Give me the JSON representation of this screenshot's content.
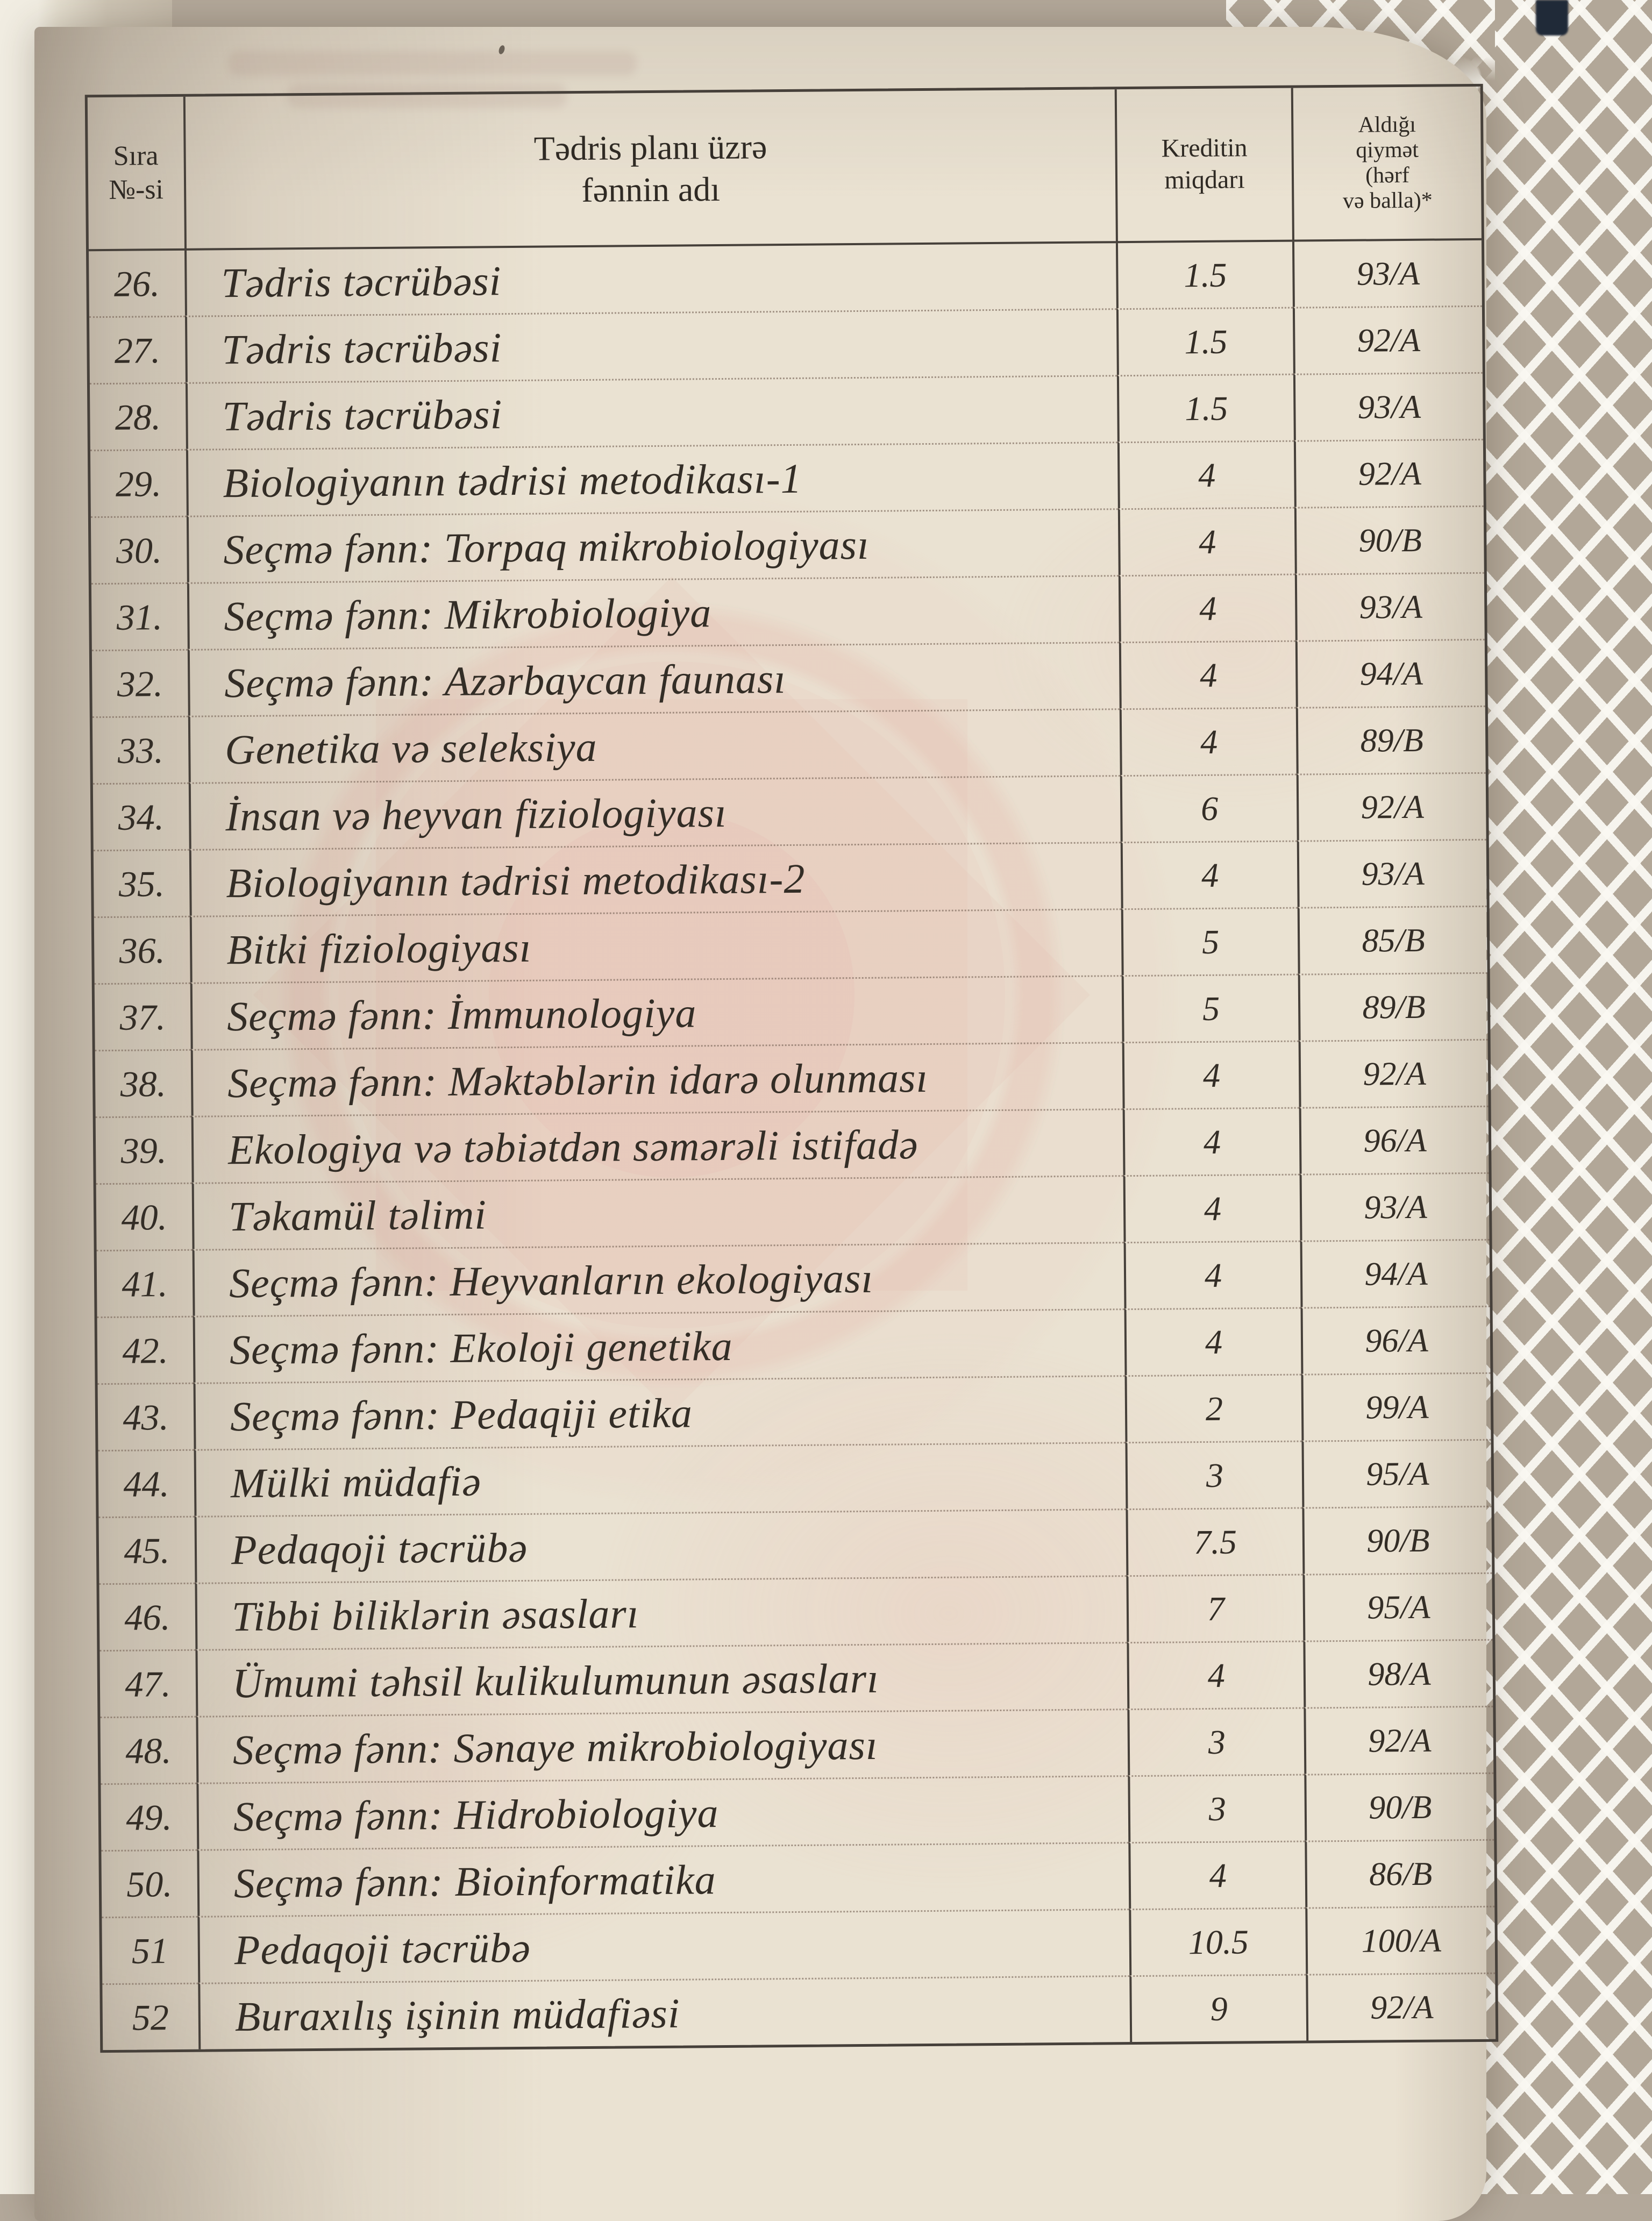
{
  "table": {
    "header": {
      "col_no": "Sıra\n№-si",
      "col_name": "Tədris planı üzrə\nfənnin adı",
      "col_credit": "Kreditin\nmiqdarı",
      "col_grade": "Aldığı\nqiymət\n(hərf\nvə balla)*"
    },
    "rows": [
      {
        "no": "26.",
        "name": "Tədris təcrübəsi",
        "credit": "1.5",
        "grade": "93/A"
      },
      {
        "no": "27.",
        "name": "Tədris təcrübəsi",
        "credit": "1.5",
        "grade": "92/A"
      },
      {
        "no": "28.",
        "name": "Tədris təcrübəsi",
        "credit": "1.5",
        "grade": "93/A"
      },
      {
        "no": "29.",
        "name": "Biologiyanın tədrisi metodikası-1",
        "credit": "4",
        "grade": "92/A"
      },
      {
        "no": "30.",
        "name": "Seçmə fənn: Torpaq mikrobiologiyası",
        "credit": "4",
        "grade": "90/B"
      },
      {
        "no": "31.",
        "name": "Seçmə fənn: Mikrobiologiya",
        "credit": "4",
        "grade": "93/A"
      },
      {
        "no": "32.",
        "name": "Seçmə fənn: Azərbaycan faunası",
        "credit": "4",
        "grade": "94/A"
      },
      {
        "no": "33.",
        "name": "Genetika və seleksiya",
        "credit": "4",
        "grade": "89/B"
      },
      {
        "no": "34.",
        "name": "İnsan və heyvan fiziologiyası",
        "credit": "6",
        "grade": "92/A"
      },
      {
        "no": "35.",
        "name": "Biologiyanın tədrisi metodikası-2",
        "credit": "4",
        "grade": "93/A"
      },
      {
        "no": "36.",
        "name": "Bitki fiziologiyası",
        "credit": "5",
        "grade": "85/B"
      },
      {
        "no": "37.",
        "name": "Seçmə fənn: İmmunologiya",
        "credit": "5",
        "grade": "89/B"
      },
      {
        "no": "38.",
        "name": "Seçmə fənn: Məktəblərin idarə olunması",
        "credit": "4",
        "grade": "92/A"
      },
      {
        "no": "39.",
        "name": "Ekologiya və təbiətdən səmərəli istifadə",
        "credit": "4",
        "grade": "96/A"
      },
      {
        "no": "40.",
        "name": "Təkamül təlimi",
        "credit": "4",
        "grade": "93/A"
      },
      {
        "no": "41.",
        "name": "Seçmə fənn: Heyvanların ekologiyası",
        "credit": "4",
        "grade": "94/A"
      },
      {
        "no": "42.",
        "name": "Seçmə fənn: Ekoloji genetika",
        "credit": "4",
        "grade": "96/A"
      },
      {
        "no": "43.",
        "name": "Seçmə fənn: Pedaqiji etika",
        "credit": "2",
        "grade": "99/A"
      },
      {
        "no": "44.",
        "name": "Mülki müdafiə",
        "credit": "3",
        "grade": "95/A"
      },
      {
        "no": "45.",
        "name": "Pedaqoji təcrübə",
        "credit": "7.5",
        "grade": "90/B"
      },
      {
        "no": "46.",
        "name": "Tibbi biliklərin əsasları",
        "credit": "7",
        "grade": "95/A"
      },
      {
        "no": "47.",
        "name": "Ümumi təhsil kulikulumunun əsasları",
        "credit": "4",
        "grade": "98/A"
      },
      {
        "no": "48.",
        "name": "Seçmə fənn: Sənaye mikrobiologiyası",
        "credit": "3",
        "grade": "92/A"
      },
      {
        "no": "49.",
        "name": "Seçmə fənn: Hidrobiologiya",
        "credit": "3",
        "grade": "90/B"
      },
      {
        "no": "50.",
        "name": "Seçmə fənn: Bioinformatika",
        "credit": "4",
        "grade": "86/B"
      },
      {
        "no": "51",
        "name": "Pedaqoji təcrübə",
        "credit": "10.5",
        "grade": "100/A"
      },
      {
        "no": "52",
        "name": "Buraxılış işinin müdafiəsi",
        "credit": "9",
        "grade": "92/A"
      }
    ]
  }
}
